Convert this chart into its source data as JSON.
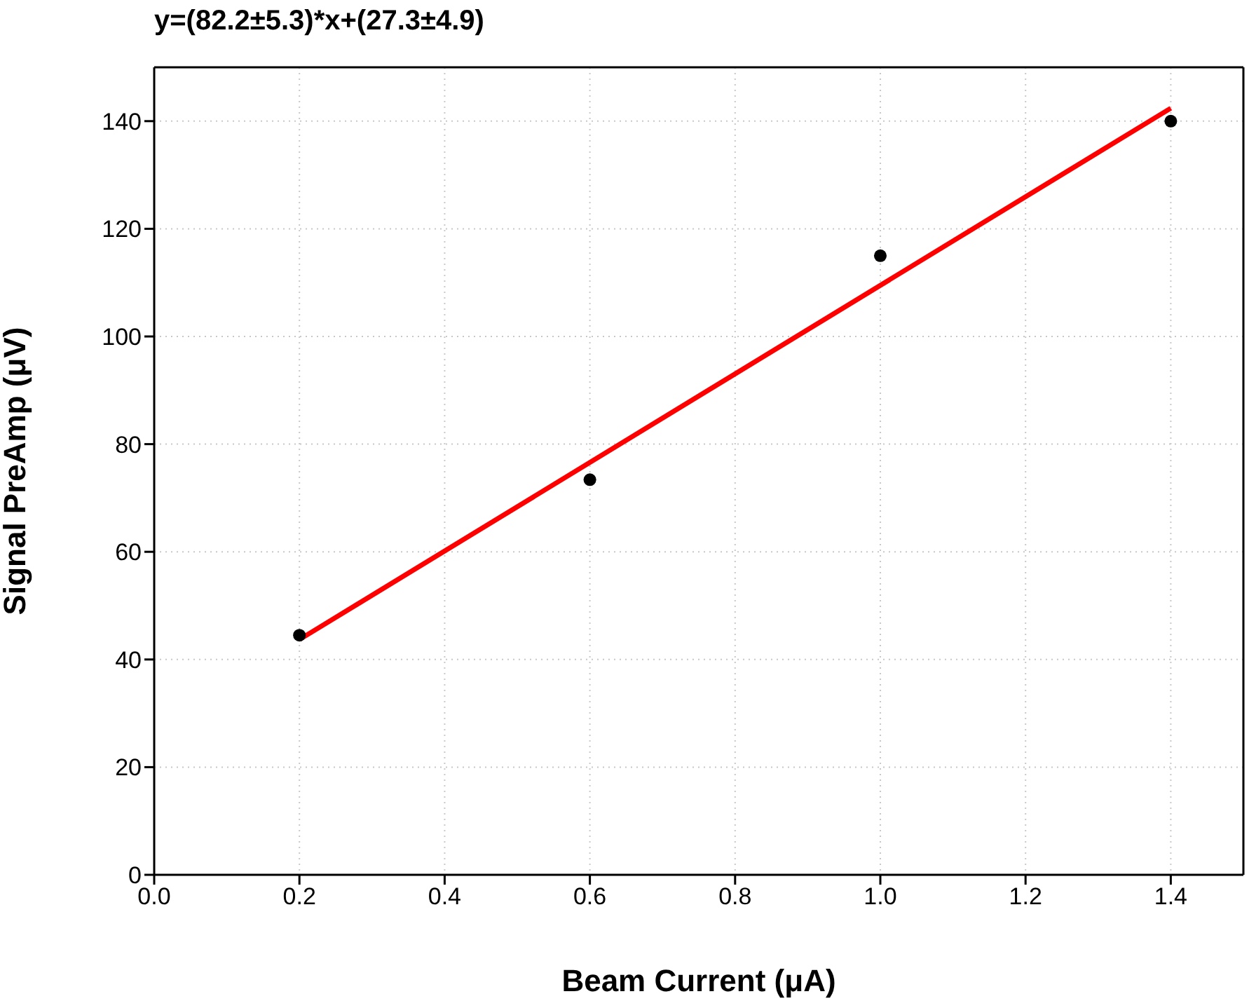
{
  "chart_data": {
    "type": "scatter",
    "title": "y=(82.2±5.3)*x+(27.3±4.9)",
    "xlabel": "Beam Current (μA)",
    "ylabel": "Signal PreAmp (μV)",
    "x": [
      0.2,
      0.6,
      1.0,
      1.4
    ],
    "series": [
      {
        "color": "#000000",
        "values": [
          44.5,
          73.4,
          115,
          140
        ],
        "marker": "circle"
      },
      {
        "type": "line",
        "color": "#ff0000",
        "x": [
          0.2,
          1.4
        ],
        "values": [
          43.7,
          142.4
        ],
        "marker": "none",
        "line_style": "solid"
      }
    ],
    "xlim": [
      0,
      1.5
    ],
    "xticks": [
      {
        "value": 0,
        "label": "0.0"
      },
      {
        "value": 0.2,
        "label": "0.2"
      },
      {
        "value": 0.4,
        "label": "0.4"
      },
      {
        "value": 0.6,
        "label": "0.6"
      },
      {
        "value": 0.8,
        "label": "0.8"
      },
      {
        "value": 1.0,
        "label": "1.0"
      },
      {
        "value": 1.2,
        "label": "1.2"
      },
      {
        "value": 1.4,
        "label": "1.4"
      }
    ],
    "ylim": [
      0,
      150
    ],
    "yticks": [
      0,
      20,
      40,
      60,
      80,
      100,
      120,
      140
    ],
    "grid": true
  }
}
